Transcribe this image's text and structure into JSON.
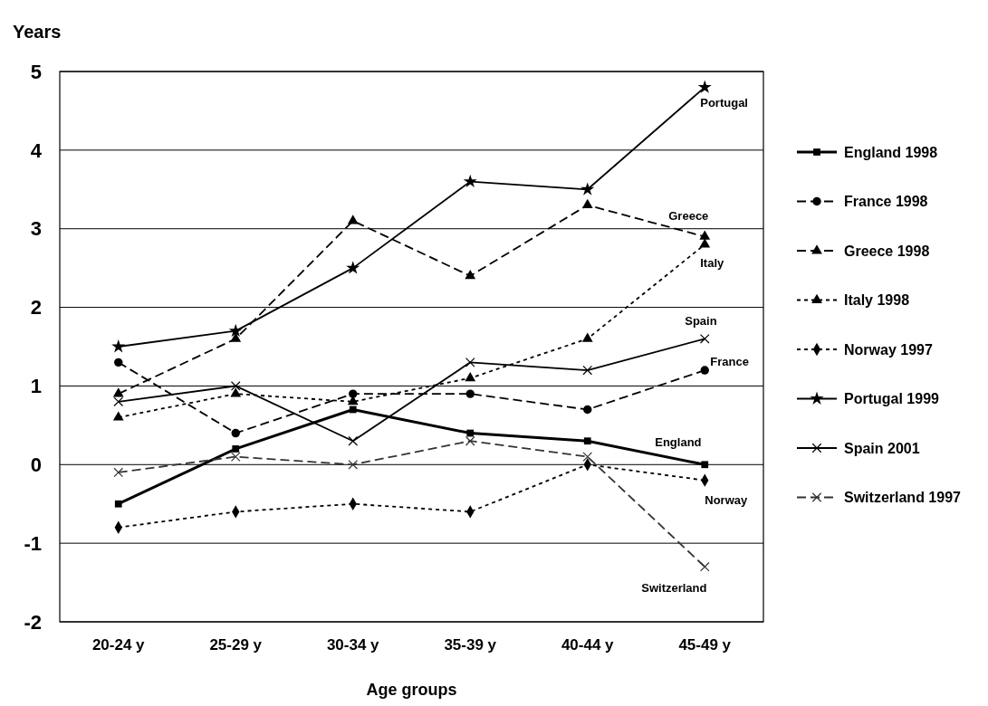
{
  "chart_data": {
    "type": "line",
    "ylabel": "Years",
    "xlabel": "Age groups",
    "categories": [
      "20-24 y",
      "25-29 y",
      "30-34 y",
      "35-39 y",
      "40-44 y",
      "45-49 y"
    ],
    "ylim": [
      -2,
      5
    ],
    "yticks": [
      -2,
      -1,
      0,
      1,
      2,
      3,
      4,
      5
    ],
    "grid": "y",
    "legend": "right",
    "series": [
      {
        "name": "England 1998",
        "color": "#000000",
        "marker": "square",
        "line_style": "solid",
        "values": [
          -0.5,
          0.2,
          0.7,
          0.4,
          0.3,
          0.0
        ]
      },
      {
        "name": "France 1998",
        "color": "#000000",
        "marker": "circle",
        "line_style": "dashed",
        "values": [
          1.3,
          0.4,
          0.9,
          0.9,
          0.7,
          1.2
        ]
      },
      {
        "name": "Greece 1998",
        "color": "#000000",
        "marker": "triangle",
        "line_style": "dashed",
        "values": [
          0.9,
          1.6,
          3.1,
          2.4,
          3.3,
          2.9
        ]
      },
      {
        "name": "Italy 1998",
        "color": "#000000",
        "marker": "triangle",
        "line_style": "dotted",
        "values": [
          0.6,
          0.9,
          0.8,
          1.1,
          1.6,
          2.8
        ]
      },
      {
        "name": "Norway 1997",
        "color": "#000000",
        "marker": "diamond",
        "line_style": "dotted",
        "values": [
          -0.8,
          -0.6,
          -0.5,
          -0.6,
          0.0,
          -0.2
        ]
      },
      {
        "name": "Portugal 1999",
        "color": "#000000",
        "marker": "star",
        "line_style": "solid",
        "values": [
          1.5,
          1.7,
          2.5,
          3.6,
          3.5,
          4.8
        ]
      },
      {
        "name": "Spain 2001",
        "color": "#000000",
        "marker": "cross",
        "line_style": "solid",
        "values": [
          0.8,
          1.0,
          0.3,
          1.3,
          1.2,
          1.6
        ]
      },
      {
        "name": "Switzerland 1997",
        "color": "#333333",
        "marker": "cross",
        "line_style": "dashed",
        "values": [
          -0.1,
          0.1,
          0.0,
          0.3,
          0.1,
          -1.3
        ]
      }
    ],
    "annotations": [
      {
        "text": "Portugal",
        "x": "45-49 y",
        "y": 4.8
      },
      {
        "text": "Greece",
        "x": "45-49 y",
        "y": 2.9
      },
      {
        "text": "Italy",
        "x": "45-49 y",
        "y": 2.8
      },
      {
        "text": "Spain",
        "x": "45-49 y",
        "y": 1.6
      },
      {
        "text": "France",
        "x": "45-49 y",
        "y": 1.2
      },
      {
        "text": "England",
        "x": "45-49 y",
        "y": 0.0
      },
      {
        "text": "Norway",
        "x": "45-49 y",
        "y": -0.2
      },
      {
        "text": "Switzerland",
        "x": "45-49 y",
        "y": -1.3
      }
    ]
  }
}
